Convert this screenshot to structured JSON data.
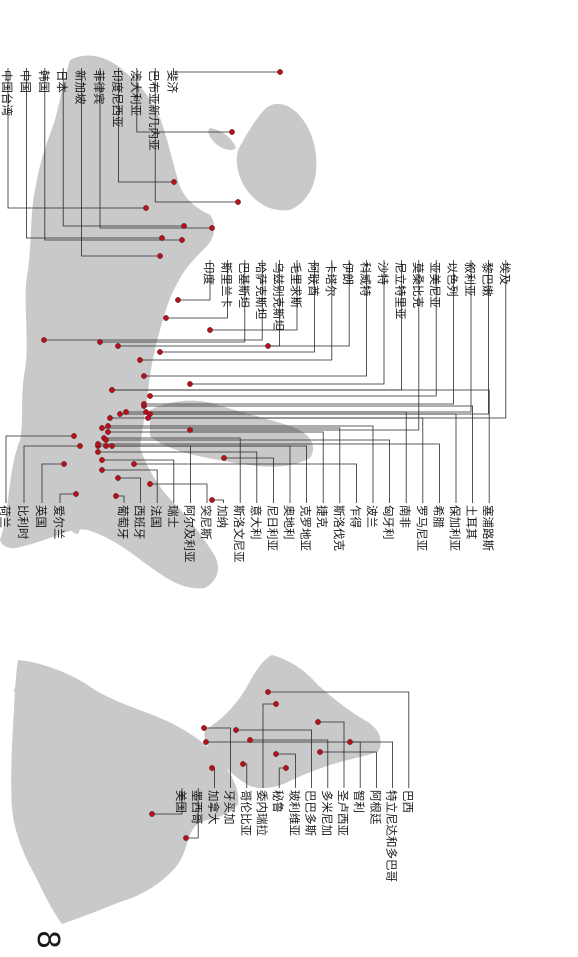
{
  "page_number": "8",
  "colors": {
    "land": "#c9c9c9",
    "marker": "#b3131f",
    "leader": "#2a2a2a",
    "text": "#1a1a1a"
  },
  "americas": [
    "美国",
    "墨西哥",
    "加拿大",
    "牙买加",
    "哥伦比亚",
    "委内瑞拉",
    "秘鲁",
    "玻利维亚",
    "巴巴多斯",
    "多米尼加",
    "圣卢西亚",
    "智利",
    "阿根廷",
    "特立尼达和多巴哥",
    "巴西"
  ],
  "europe_left": [
    "荷兰",
    "比利时",
    "英国",
    "爱尔兰"
  ],
  "europe_africa": [
    "葡萄牙",
    "西班牙",
    "法国",
    "瑞士",
    "阿尔及利亚",
    "突尼斯",
    "加纳",
    "斯洛文尼亚",
    "意大利",
    "尼日利亚",
    "奥地利",
    "克罗地亚",
    "捷克",
    "斯洛伐克",
    "乍得",
    "波兰",
    "匈牙利",
    "南非",
    "罗马尼亚",
    "希腊",
    "保加利亚",
    "土耳其",
    "塞浦路斯"
  ],
  "middle_east_south_asia": [
    "印度",
    "斯里兰卡",
    "巴基斯坦",
    "哈萨克斯坦",
    "乌兹别克斯坦",
    "毛里求斯",
    "阿联酋",
    "卡塔尔",
    "伊朗",
    "科威特",
    "沙特",
    "尼立特里亚",
    "莫桑比克",
    "亚美尼亚",
    "以色列",
    "叙利亚",
    "黎巴嫩",
    "埃及"
  ],
  "asia_pacific": [
    "中国台湾",
    "中国",
    "韩国",
    "日本",
    "新加坡",
    "菲律宾",
    "印度尼西亚",
    "澳大利亚",
    "巴布亚新几内亚",
    "斐济"
  ]
}
